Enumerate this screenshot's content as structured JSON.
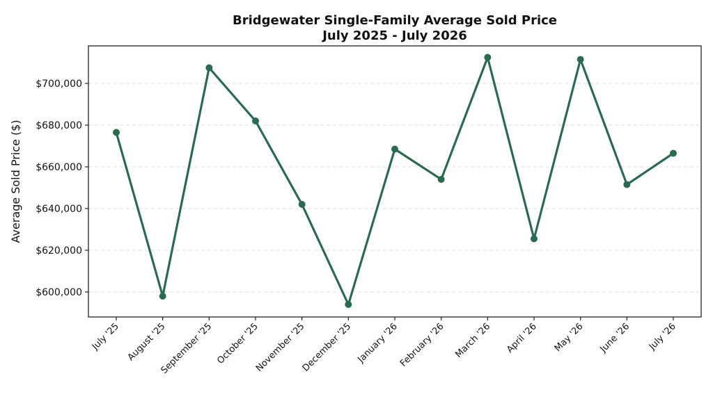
{
  "chart_data": {
    "type": "line",
    "title": "Bridgewater Single-Family Average Sold Price",
    "subtitle": "July 2025 - July 2026",
    "xlabel": "",
    "ylabel": "Average Sold Price ($)",
    "ylim": [
      588000,
      718000
    ],
    "yticks": [
      600000,
      620000,
      640000,
      660000,
      680000,
      700000
    ],
    "ytick_labels": [
      "$600,000",
      "$620,000",
      "$640,000",
      "$660,000",
      "$680,000",
      "$700,000"
    ],
    "categories": [
      "July '25",
      "August '25",
      "September '25",
      "October '25",
      "November '25",
      "December '25",
      "January '26",
      "February '26",
      "March '26",
      "April '26",
      "May '26",
      "June '26",
      "July '26"
    ],
    "series": [
      {
        "values": [
          676500,
          598000,
          707500,
          682000,
          642000,
          594000,
          668500,
          654000,
          712500,
          625500,
          711500,
          651500,
          666500
        ],
        "color": "#2a6b4f"
      }
    ],
    "grid": "horizontal dashed",
    "legend": "none"
  }
}
